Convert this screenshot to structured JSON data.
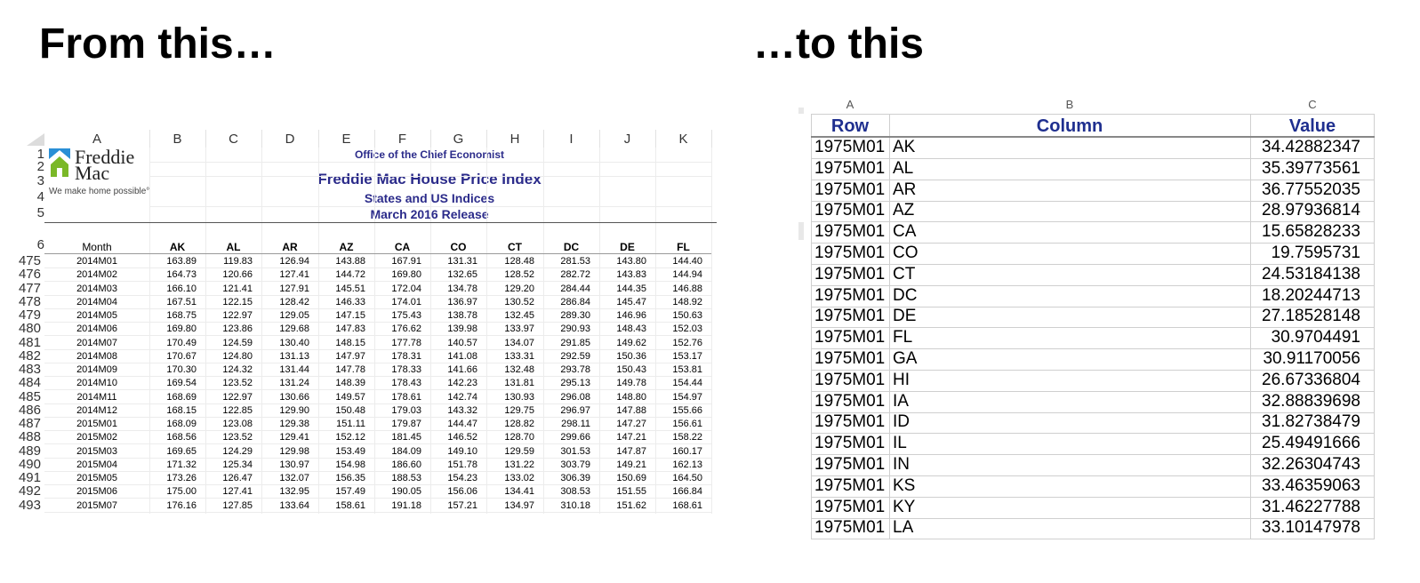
{
  "headings": {
    "left": "From this…",
    "right": "…to this"
  },
  "left_sheet": {
    "column_letters": [
      "A",
      "B",
      "C",
      "D",
      "E",
      "F",
      "G",
      "H",
      "I",
      "J",
      "K"
    ],
    "row_numbers_top": [
      "1",
      "2",
      "3",
      "4",
      "5",
      "6"
    ],
    "logo": {
      "line1": "Freddie",
      "line2": "Mac",
      "tagline": "We make home possible°"
    },
    "office": "Office of the Chief Economist",
    "title": "Freddie Mac House Price Index",
    "subtitle": "States and US Indices",
    "release": "March 2016 Release",
    "headers": [
      "Month",
      "AK",
      "AL",
      "AR",
      "AZ",
      "CA",
      "CO",
      "CT",
      "DC",
      "DE",
      "FL"
    ],
    "row_numbers": [
      "475",
      "476",
      "477",
      "478",
      "479",
      "480",
      "481",
      "482",
      "483",
      "484",
      "485",
      "486",
      "487",
      "488",
      "489",
      "490",
      "491",
      "492",
      "493"
    ],
    "rows": [
      [
        "2014M01",
        "163.89",
        "119.83",
        "126.94",
        "143.88",
        "167.91",
        "131.31",
        "128.48",
        "281.53",
        "143.80",
        "144.40"
      ],
      [
        "2014M02",
        "164.73",
        "120.66",
        "127.41",
        "144.72",
        "169.80",
        "132.65",
        "128.52",
        "282.72",
        "143.83",
        "144.94"
      ],
      [
        "2014M03",
        "166.10",
        "121.41",
        "127.91",
        "145.51",
        "172.04",
        "134.78",
        "129.20",
        "284.44",
        "144.35",
        "146.88"
      ],
      [
        "2014M04",
        "167.51",
        "122.15",
        "128.42",
        "146.33",
        "174.01",
        "136.97",
        "130.52",
        "286.84",
        "145.47",
        "148.92"
      ],
      [
        "2014M05",
        "168.75",
        "122.97",
        "129.05",
        "147.15",
        "175.43",
        "138.78",
        "132.45",
        "289.30",
        "146.96",
        "150.63"
      ],
      [
        "2014M06",
        "169.80",
        "123.86",
        "129.68",
        "147.83",
        "176.62",
        "139.98",
        "133.97",
        "290.93",
        "148.43",
        "152.03"
      ],
      [
        "2014M07",
        "170.49",
        "124.59",
        "130.40",
        "148.15",
        "177.78",
        "140.57",
        "134.07",
        "291.85",
        "149.62",
        "152.76"
      ],
      [
        "2014M08",
        "170.67",
        "124.80",
        "131.13",
        "147.97",
        "178.31",
        "141.08",
        "133.31",
        "292.59",
        "150.36",
        "153.17"
      ],
      [
        "2014M09",
        "170.30",
        "124.32",
        "131.44",
        "147.78",
        "178.33",
        "141.66",
        "132.48",
        "293.78",
        "150.43",
        "153.81"
      ],
      [
        "2014M10",
        "169.54",
        "123.52",
        "131.24",
        "148.39",
        "178.43",
        "142.23",
        "131.81",
        "295.13",
        "149.78",
        "154.44"
      ],
      [
        "2014M11",
        "168.69",
        "122.97",
        "130.66",
        "149.57",
        "178.61",
        "142.74",
        "130.93",
        "296.08",
        "148.80",
        "154.97"
      ],
      [
        "2014M12",
        "168.15",
        "122.85",
        "129.90",
        "150.48",
        "179.03",
        "143.32",
        "129.75",
        "296.97",
        "147.88",
        "155.66"
      ],
      [
        "2015M01",
        "168.09",
        "123.08",
        "129.38",
        "151.11",
        "179.87",
        "144.47",
        "128.82",
        "298.11",
        "147.27",
        "156.61"
      ],
      [
        "2015M02",
        "168.56",
        "123.52",
        "129.41",
        "152.12",
        "181.45",
        "146.52",
        "128.70",
        "299.66",
        "147.21",
        "158.22"
      ],
      [
        "2015M03",
        "169.65",
        "124.29",
        "129.98",
        "153.49",
        "184.09",
        "149.10",
        "129.59",
        "301.53",
        "147.87",
        "160.17"
      ],
      [
        "2015M04",
        "171.32",
        "125.34",
        "130.97",
        "154.98",
        "186.60",
        "151.78",
        "131.22",
        "303.79",
        "149.21",
        "162.13"
      ],
      [
        "2015M05",
        "173.26",
        "126.47",
        "132.07",
        "156.35",
        "188.53",
        "154.23",
        "133.02",
        "306.39",
        "150.69",
        "164.50"
      ],
      [
        "2015M06",
        "175.00",
        "127.41",
        "132.95",
        "157.49",
        "190.05",
        "156.06",
        "134.41",
        "308.53",
        "151.55",
        "166.84"
      ],
      [
        "2015M07",
        "176.16",
        "127.85",
        "133.64",
        "158.61",
        "191.18",
        "157.21",
        "134.97",
        "310.18",
        "151.62",
        "168.61"
      ]
    ]
  },
  "right_sheet": {
    "column_letters": [
      "A",
      "B",
      "C"
    ],
    "headers": {
      "row": "Row",
      "column": "Column",
      "value": "Value"
    },
    "rows": [
      [
        "1975M01",
        "AK",
        "34.42882347"
      ],
      [
        "1975M01",
        "AL",
        "35.39773561"
      ],
      [
        "1975M01",
        "AR",
        "36.77552035"
      ],
      [
        "1975M01",
        "AZ",
        "28.97936814"
      ],
      [
        "1975M01",
        "CA",
        "15.65828233"
      ],
      [
        "1975M01",
        "CO",
        "19.7595731"
      ],
      [
        "1975M01",
        "CT",
        "24.53184138"
      ],
      [
        "1975M01",
        "DC",
        "18.20244713"
      ],
      [
        "1975M01",
        "DE",
        "27.18528148"
      ],
      [
        "1975M01",
        "FL",
        "30.9704491"
      ],
      [
        "1975M01",
        "GA",
        "30.91170056"
      ],
      [
        "1975M01",
        "HI",
        "26.67336804"
      ],
      [
        "1975M01",
        "IA",
        "32.88839698"
      ],
      [
        "1975M01",
        "ID",
        "31.82738479"
      ],
      [
        "1975M01",
        "IL",
        "25.49491666"
      ],
      [
        "1975M01",
        "IN",
        "32.26304743"
      ],
      [
        "1975M01",
        "KS",
        "33.46359063"
      ],
      [
        "1975M01",
        "KY",
        "31.46227788"
      ],
      [
        "1975M01",
        "LA",
        "33.10147978"
      ]
    ]
  }
}
